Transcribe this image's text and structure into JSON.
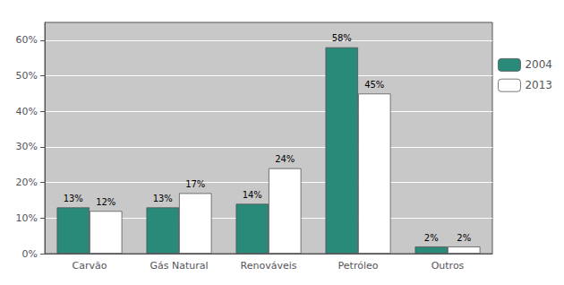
{
  "chart_data": {
    "type": "bar",
    "categories": [
      "Carvão",
      "Gás Natural",
      "Renováveis",
      "Petróleo",
      "Outros"
    ],
    "series": [
      {
        "name": "2004",
        "color": "#2a8a7a",
        "values": [
          13,
          13,
          14,
          58,
          2
        ],
        "value_labels": [
          "13%",
          "13%",
          "14%",
          "58%",
          "2%"
        ]
      },
      {
        "name": "2013",
        "color": "#ffffff",
        "values": [
          12,
          17,
          24,
          45,
          2
        ],
        "value_labels": [
          "12%",
          "17%",
          "24%",
          "45%",
          "2%"
        ]
      }
    ],
    "ylim": [
      0,
      65
    ],
    "yticks": [
      {
        "value": 0,
        "label": "0%"
      },
      {
        "value": 10,
        "label": "10%"
      },
      {
        "value": 20,
        "label": "20%"
      },
      {
        "value": 30,
        "label": "30%"
      },
      {
        "value": 40,
        "label": "40%"
      },
      {
        "value": 50,
        "label": "50%"
      },
      {
        "value": 60,
        "label": "60%"
      }
    ],
    "grid": true,
    "legend": "right",
    "data_labels": true
  }
}
